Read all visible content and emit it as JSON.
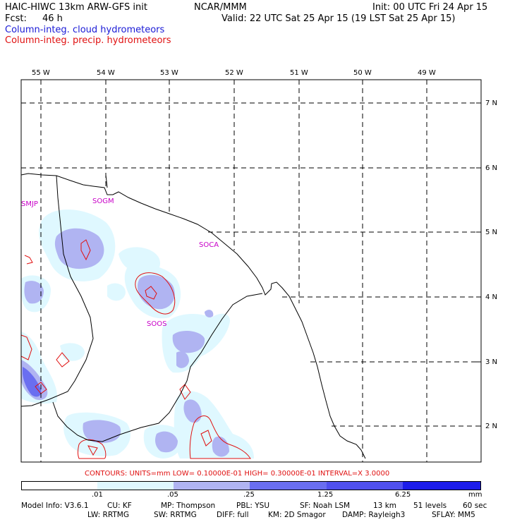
{
  "header": {
    "title_left": "HAIC-HIWC 13km ARW-GFS init",
    "title_mid": "NCAR/MMM",
    "init": "Init: 00 UTC Fri 24 Apr 15",
    "fcst_label": "Fcst:",
    "fcst_value": "46 h",
    "valid": "Valid: 22 UTC Sat 25 Apr 15 (19 LST Sat 25 Apr 15)",
    "legend_cloud": "Column-integ. cloud hydrometeors",
    "legend_precip": "Column-integ. precip. hydrometeors"
  },
  "map": {
    "lon_labels": [
      "55 W",
      "54 W",
      "53 W",
      "52 W",
      "51 W",
      "50 W",
      "49 W"
    ],
    "lat_labels": [
      "7 N",
      "6 N",
      "5 N",
      "4 N",
      "3 N",
      "2 N"
    ],
    "stations": [
      "SMJP",
      "SOGM",
      "SOCA",
      "SOOS"
    ],
    "colors": {
      "cloud_light": "#dff8ff",
      "cloud_mid": "#b0b4f2",
      "cloud_dark": "#6a6ef0",
      "precip_contour": "#e01010",
      "station_label": "#c800c8"
    }
  },
  "contours_info": "CONTOURS:  UNITS=mm  LOW= 0.10000E-01  HIGH= 0.30000E-01  INTERVAL=X  3.0000",
  "colorbar": {
    "ticks": [
      ".01",
      ".05",
      ".25",
      "1.25",
      "6.25"
    ],
    "unit": "mm",
    "colors": [
      "#ffffff",
      "#dff8ff",
      "#b0b4f2",
      "#6a6ef0",
      "#5050ee",
      "#1c1cea"
    ]
  },
  "footer": {
    "line1": [
      "Model Info: V3.6.1",
      "CU: KF",
      "MP: Thompson",
      "PBL: YSU",
      "SF: Noah LSM",
      "13 km",
      "51 levels",
      "60 sec"
    ],
    "line2": [
      "LW: RRTMG",
      "SW: RRTMG",
      "DIFF: full",
      "KM: 2D Smagor",
      "DAMP: Rayleigh3",
      "SFLAY: MM5"
    ]
  }
}
